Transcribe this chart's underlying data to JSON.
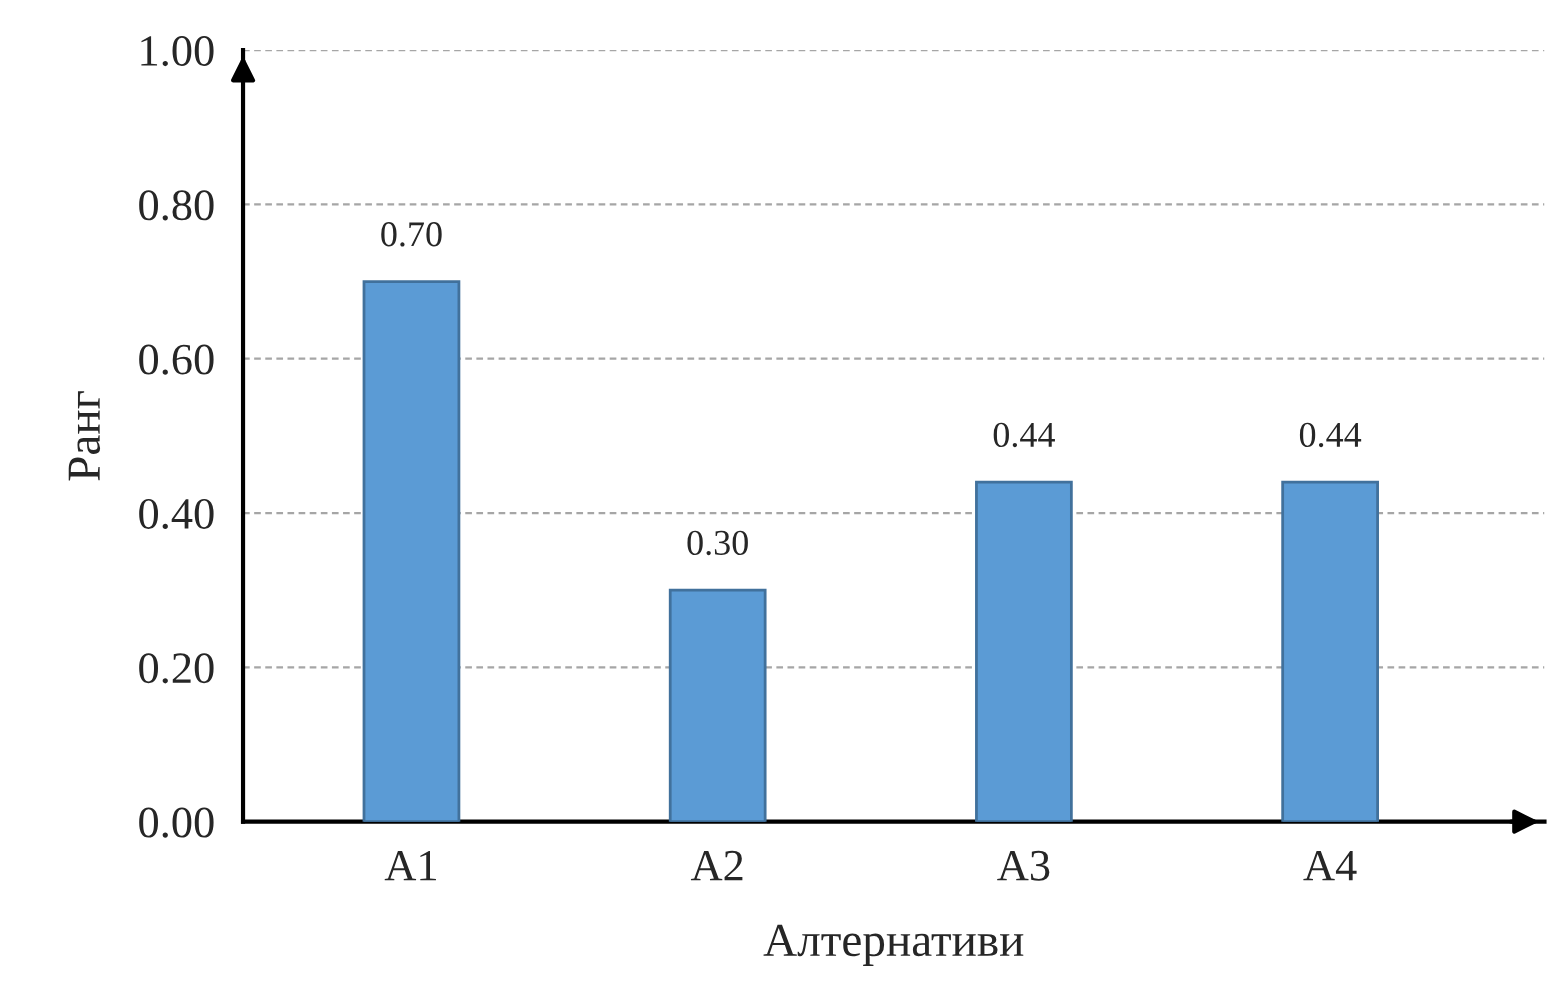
{
  "chart_data": {
    "type": "bar",
    "xlabel": "Алтернативи",
    "ylabel": "Ранг",
    "categories": [
      "A1",
      "A2",
      "A3",
      "A4"
    ],
    "values": [
      0.7,
      0.3,
      0.44,
      0.44
    ],
    "value_labels": [
      "0.70",
      "0.30",
      "0.44",
      "0.44"
    ],
    "color": "#5b9bd5",
    "ylim": [
      0,
      1
    ],
    "yticks": [
      {
        "value": 0,
        "label": "0.00"
      },
      {
        "value": 0.2,
        "label": "0.20"
      },
      {
        "value": 0.4,
        "label": "0.40"
      },
      {
        "value": 0.6,
        "label": "0.60"
      },
      {
        "value": 0.8,
        "label": "0.80"
      },
      {
        "value": 1,
        "label": "1.00"
      }
    ],
    "grid": "y"
  }
}
